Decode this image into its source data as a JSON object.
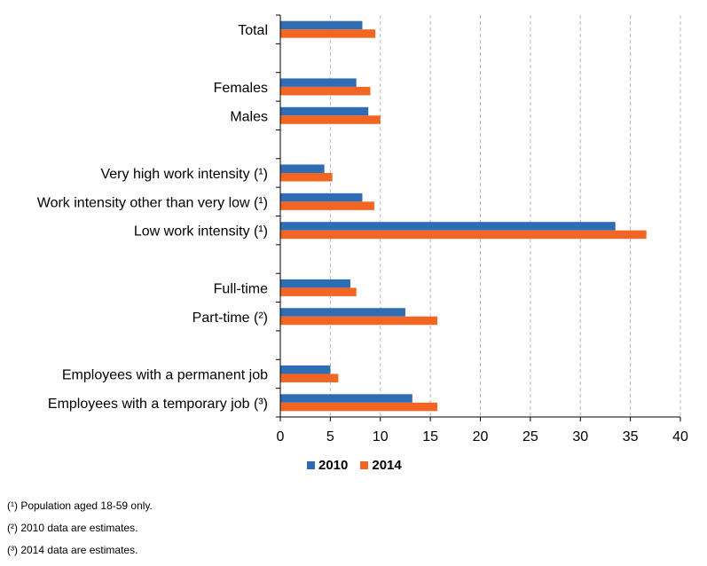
{
  "chart_data": {
    "type": "bar",
    "orientation": "horizontal",
    "categories": [
      "Total",
      "",
      "Females",
      "Males",
      "",
      "Very high work intensity (¹)",
      "Work intensity other than very low (¹)",
      "Low work intensity (¹)",
      "",
      "Full-time",
      "Part-time (²)",
      "",
      "Employees with a permanent job",
      "Employees with a temporary job (³)"
    ],
    "series": [
      {
        "name": "2010",
        "color": "#2e6db4",
        "values": [
          8.2,
          null,
          7.6,
          8.8,
          null,
          4.4,
          8.2,
          33.5,
          null,
          7.0,
          12.5,
          null,
          5.0,
          13.2
        ]
      },
      {
        "name": "2014",
        "color": "#f26522",
        "values": [
          9.5,
          null,
          9.0,
          10.0,
          null,
          5.2,
          9.4,
          36.6,
          null,
          7.6,
          15.7,
          null,
          5.8,
          15.7
        ]
      }
    ],
    "xlim": [
      0,
      40
    ],
    "xticks": [
      0,
      5,
      10,
      15,
      20,
      25,
      30,
      35,
      40
    ],
    "grid": "vertical dashed",
    "legend_position": "bottom-center"
  },
  "legend": {
    "items": [
      {
        "label": "2010",
        "color": "#2e6db4"
      },
      {
        "label": "2014",
        "color": "#f26522"
      }
    ]
  },
  "notes": [
    " (¹) Population aged 18-59 only.",
    "(²) 2010 data are estimates.",
    "(³) 2014 data are estimates."
  ]
}
